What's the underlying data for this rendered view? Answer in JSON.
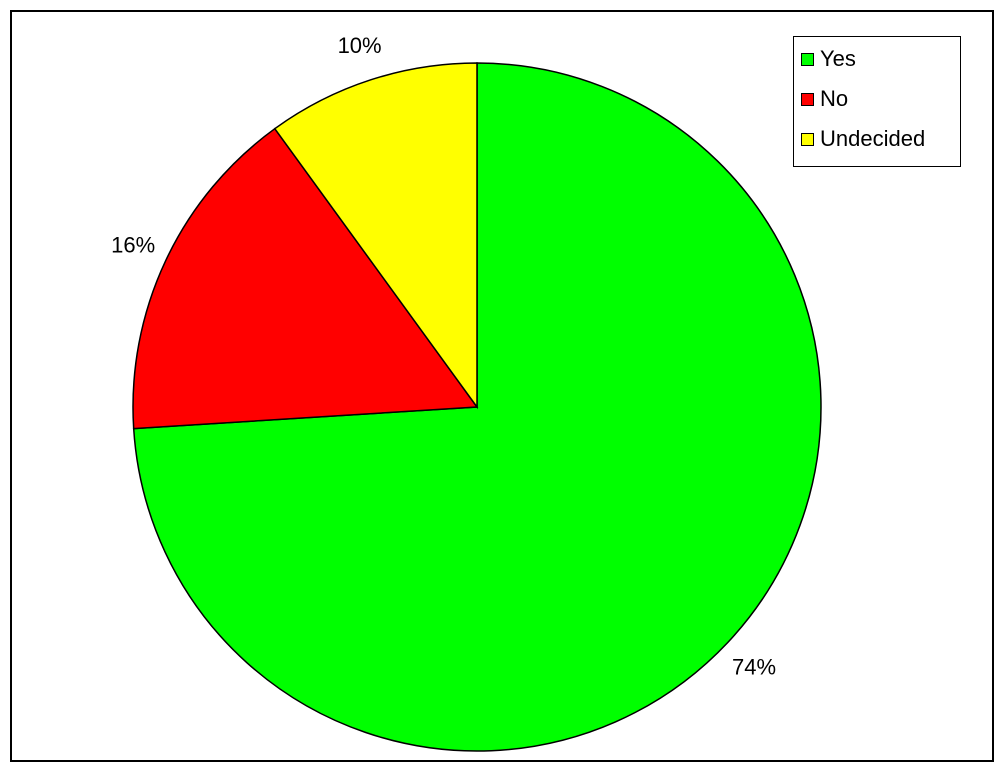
{
  "chart_data": {
    "type": "pie",
    "categories": [
      "Yes",
      "No",
      "Undecided"
    ],
    "values": [
      74,
      16,
      10
    ],
    "labels": [
      "74%",
      "16%",
      "10%"
    ],
    "colors": [
      "#00ff00",
      "#ff0000",
      "#ffff00"
    ],
    "legend": {
      "placement": "top-right",
      "entries": [
        "Yes",
        "No",
        "Undecided"
      ]
    },
    "start_angle": "12 o'clock",
    "direction": "clockwise"
  }
}
